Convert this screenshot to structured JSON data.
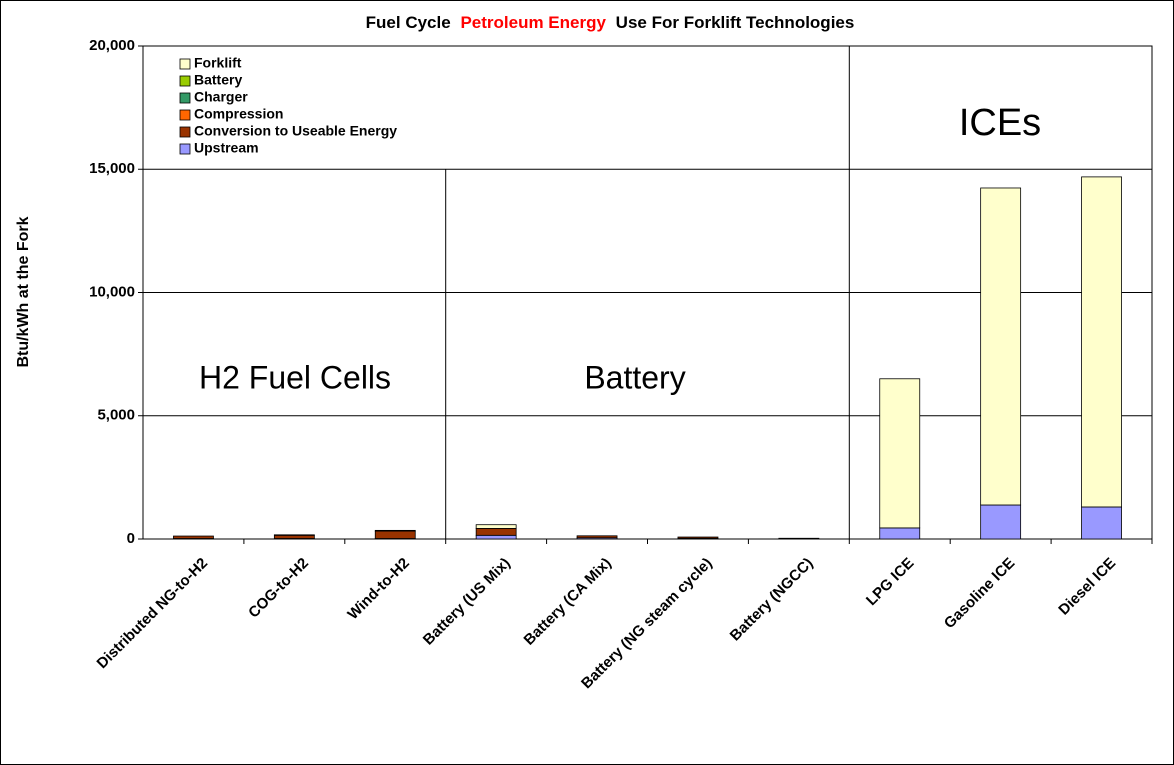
{
  "chart_data": {
    "type": "stacked_bar",
    "title": [
      "Fuel Cycle",
      "Petroleum Energy",
      "Use For Forklift Technologies"
    ],
    "y_label": "Btu/kWh at the Fork",
    "categories": [
      "Distributed NG-to-H2",
      "COG-to-H2",
      "Wind-to-H2",
      "Battery  (US Mix)",
      "Battery  (CA Mix)",
      "Battery  (NG steam cycle)",
      "Battery  (NGCC)",
      "LPG ICE",
      "Gasoline ICE",
      "Diesel ICE"
    ],
    "series": [
      {
        "name": "Upstream",
        "color": "#9999ff",
        "values": [
          20,
          20,
          20,
          150,
          50,
          30,
          10,
          450,
          1380,
          1300
        ]
      },
      {
        "name": "Conversion to Useable Energy",
        "color": "#993300",
        "values": [
          100,
          130,
          300,
          280,
          80,
          50,
          20,
          0,
          0,
          0
        ]
      },
      {
        "name": "Compression",
        "color": "#ff6600",
        "values": [
          0,
          20,
          30,
          0,
          0,
          0,
          0,
          0,
          0,
          0
        ]
      },
      {
        "name": "Charger",
        "color": "#339966",
        "values": [
          0,
          0,
          0,
          0,
          0,
          0,
          0,
          0,
          0,
          0
        ]
      },
      {
        "name": "Battery",
        "color": "#99cc00",
        "values": [
          0,
          0,
          0,
          0,
          0,
          0,
          0,
          0,
          0,
          0
        ]
      },
      {
        "name": "Forklift",
        "color": "#ffffcc",
        "values": [
          0,
          0,
          0,
          150,
          0,
          0,
          0,
          6050,
          12860,
          13390
        ]
      }
    ],
    "ylim": [
      0,
      20000
    ],
    "yticks": [
      {
        "value": 0,
        "label": "0"
      },
      {
        "value": 5000,
        "label": "5,000"
      },
      {
        "value": 10000,
        "label": "10,000"
      },
      {
        "value": 15000,
        "label": "15,000"
      },
      {
        "value": 20000,
        "label": "20,000"
      }
    ],
    "grid": true,
    "legend": "top-left",
    "annotations": [
      "H2 Fuel Cells",
      "Battery",
      "ICEs"
    ]
  }
}
